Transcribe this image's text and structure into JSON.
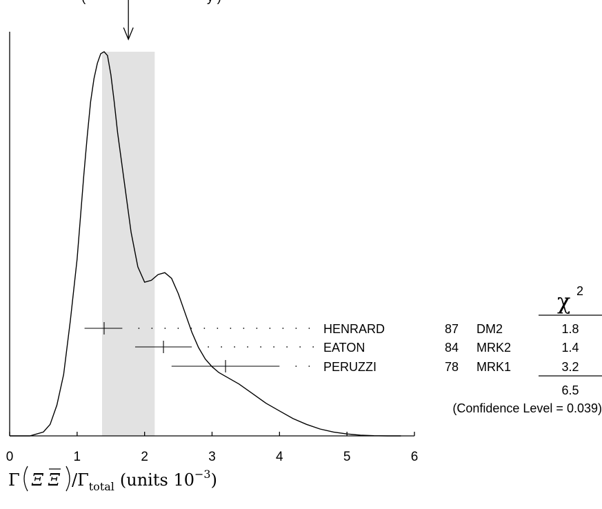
{
  "chart_data": {
    "type": "ideogram",
    "title_fragment": "(",
    "title_fragment_2": "y )",
    "xlim": [
      0,
      6
    ],
    "x_ticks": [
      "0",
      "1",
      "2",
      "3",
      "4",
      "5",
      "6"
    ],
    "xlabel": {
      "gamma": "Γ",
      "xi": "Ξ",
      "xibar": "Ξ",
      "ratio_mid": "/Γ",
      "sub": "total",
      "units": "(units 10",
      "exp": "−3",
      "close": ")"
    },
    "average": {
      "value": 1.76,
      "error": 0.39
    },
    "ideogram": {
      "x": [
        0.0,
        0.3,
        0.5,
        0.6,
        0.7,
        0.8,
        0.9,
        1.0,
        1.05,
        1.1,
        1.15,
        1.2,
        1.25,
        1.3,
        1.35,
        1.4,
        1.45,
        1.5,
        1.55,
        1.6,
        1.7,
        1.8,
        1.9,
        2.0,
        2.1,
        2.2,
        2.3,
        2.4,
        2.5,
        2.6,
        2.7,
        2.8,
        2.9,
        3.0,
        3.1,
        3.2,
        3.4,
        3.6,
        3.8,
        4.0,
        4.2,
        4.4,
        4.6,
        4.8,
        5.0,
        5.2,
        5.4,
        5.6,
        5.8
      ],
      "y": [
        0.0,
        0.0,
        0.01,
        0.03,
        0.08,
        0.16,
        0.3,
        0.46,
        0.57,
        0.68,
        0.78,
        0.87,
        0.93,
        0.97,
        0.995,
        1.0,
        0.99,
        0.94,
        0.87,
        0.79,
        0.66,
        0.53,
        0.44,
        0.4,
        0.405,
        0.42,
        0.425,
        0.41,
        0.37,
        0.32,
        0.27,
        0.23,
        0.2,
        0.18,
        0.165,
        0.155,
        0.135,
        0.11,
        0.085,
        0.065,
        0.045,
        0.03,
        0.018,
        0.01,
        0.005,
        0.002,
        0.0005,
        0.0,
        0.0
      ]
    },
    "measurements": [
      {
        "name": "HENRARD",
        "year": "87",
        "code": "DM2",
        "chi2": "1.8",
        "value": 1.4,
        "err_low": 0.29,
        "err_high": 0.27
      },
      {
        "name": "EATON",
        "year": "84",
        "code": "MRK2",
        "chi2": "1.4",
        "value": 2.28,
        "err_low": 0.42,
        "err_high": 0.42
      },
      {
        "name": "PERUZZI",
        "year": "78",
        "code": "MRK1",
        "chi2": "3.2",
        "value": 3.2,
        "err_low": 0.8,
        "err_high": 0.8
      }
    ],
    "chi2_header": "χ",
    "chi2_power": "2",
    "chi2_total": "6.5",
    "confidence_level": "(Confidence Level = 0.039)"
  }
}
